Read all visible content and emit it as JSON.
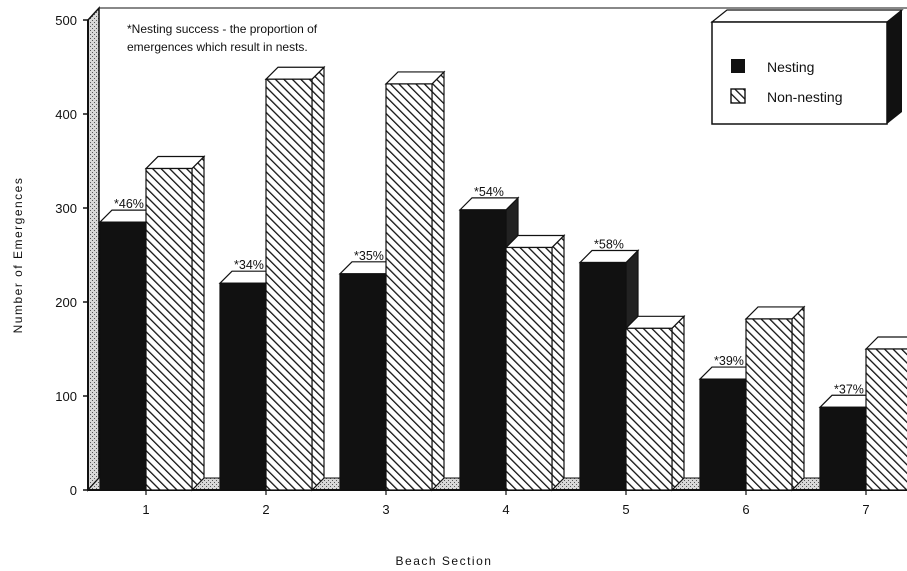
{
  "chart_data": {
    "type": "bar",
    "title": "",
    "xlabel": "Beach Section",
    "ylabel": "Number of Emergences",
    "categories": [
      "1",
      "2",
      "3",
      "4",
      "5",
      "6",
      "7"
    ],
    "ylim": [
      0,
      500
    ],
    "yticks": [
      "0",
      "100",
      "200",
      "300",
      "400",
      "500"
    ],
    "series": [
      {
        "name": "Nesting",
        "values": [
          285,
          220,
          230,
          298,
          242,
          118,
          88
        ],
        "fill": "solid-black"
      },
      {
        "name": "Non-nesting",
        "values": [
          342,
          437,
          432,
          258,
          172,
          182,
          150
        ],
        "fill": "diagonal-hatch"
      }
    ],
    "data_labels": [
      "*46%",
      "*34%",
      "*35%",
      "*54%",
      "*58%",
      "*39%",
      "*37%"
    ],
    "annotation": {
      "line1": "*Nesting success - the proportion of",
      "line2": "emergences which result in nests."
    },
    "legend": {
      "placement": "top-right",
      "entries": [
        "Nesting",
        "Non-nesting"
      ]
    },
    "style": "3d-bars",
    "grid": false
  }
}
